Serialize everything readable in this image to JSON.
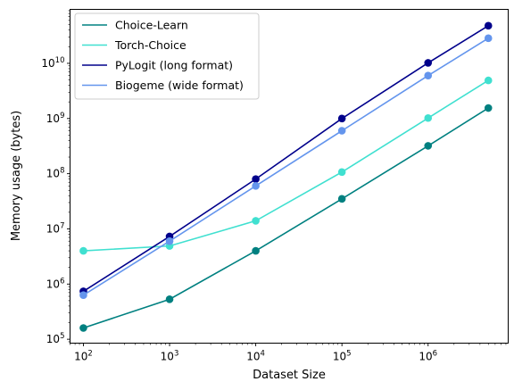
{
  "chart_data": {
    "type": "line",
    "title": "",
    "xlabel": "Dataset Size",
    "ylabel": "Memory usage (bytes)",
    "x_scale": "log",
    "y_scale": "log",
    "xlim": [
      70,
      8500000
    ],
    "ylim": [
      85000,
      95000000000
    ],
    "x_major_ticks": [
      100,
      1000,
      10000,
      100000,
      1000000
    ],
    "x_tick_labels": [
      [
        "10",
        "2"
      ],
      [
        "10",
        "3"
      ],
      [
        "10",
        "4"
      ],
      [
        "10",
        "5"
      ],
      [
        "10",
        "6"
      ]
    ],
    "y_major_ticks": [
      100000,
      1000000,
      10000000,
      100000000,
      1000000000,
      10000000000
    ],
    "y_tick_labels": [
      [
        "10",
        "5"
      ],
      [
        "10",
        "6"
      ],
      [
        "10",
        "7"
      ],
      [
        "10",
        "8"
      ],
      [
        "10",
        "9"
      ],
      [
        "10",
        "10"
      ]
    ],
    "grid": false,
    "legend_position": "top-left",
    "x": [
      100,
      1000,
      10000,
      100000,
      1000000,
      5000000
    ],
    "series": [
      {
        "name": "Choice-Learn",
        "color": "#008080",
        "values": [
          160000,
          530000,
          4000000,
          35000000,
          320000000,
          1550000000
        ]
      },
      {
        "name": "Torch-Choice",
        "color": "#40E0D0",
        "values": [
          4000000,
          4900000,
          14000000,
          107000000,
          1020000000,
          4900000000
        ]
      },
      {
        "name": "PyLogit (long format)",
        "color": "#00008B",
        "values": [
          740000,
          7300000,
          80000000,
          1000000000,
          10200000000,
          48000000000
        ]
      },
      {
        "name": "Biogeme (wide format)",
        "color": "#6495ED",
        "values": [
          630000,
          6000000,
          60000000,
          600000000,
          6000000000,
          28500000000
        ]
      }
    ]
  }
}
